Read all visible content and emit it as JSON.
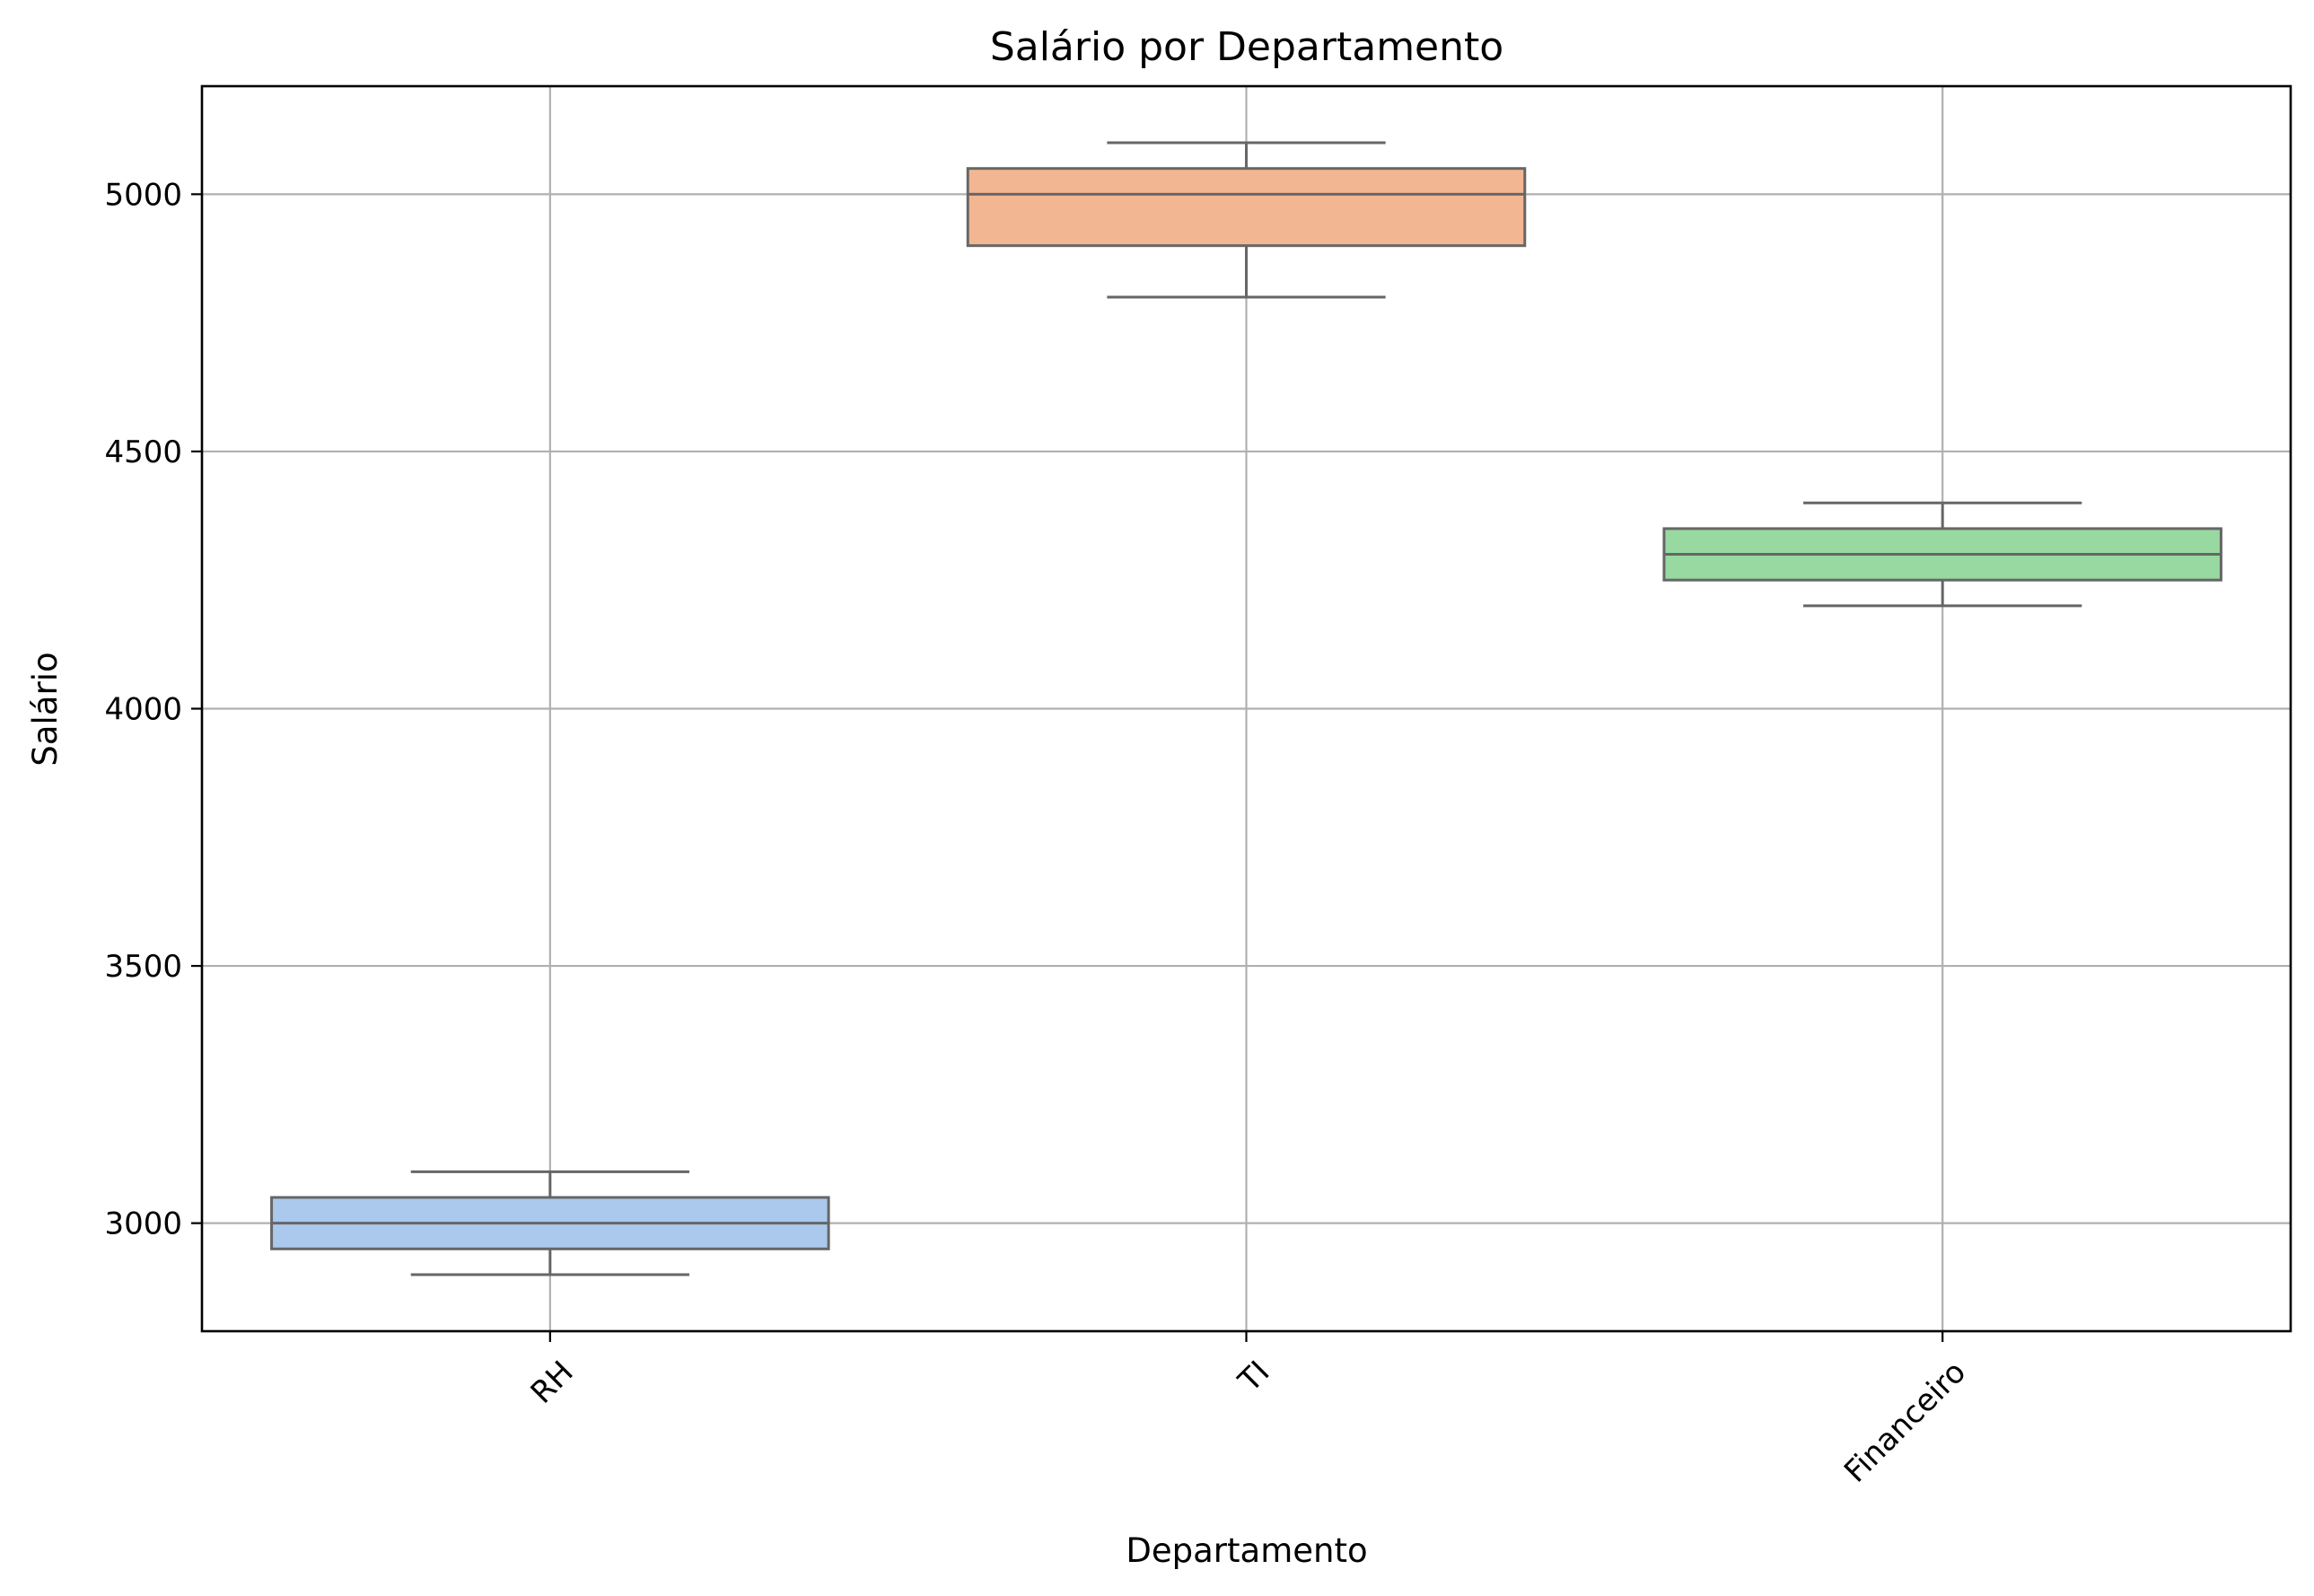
{
  "chart_data": {
    "type": "box",
    "title": "Salário por Departamento",
    "xlabel": "Departamento",
    "ylabel": "Salário",
    "ylim": [
      2790,
      5210
    ],
    "yticks": [
      3000,
      3500,
      4000,
      4500,
      5000
    ],
    "grid": true,
    "categories": [
      "RH",
      "TI",
      "Financeiro"
    ],
    "boxes": [
      {
        "category": "RH",
        "whisker_low": 2900,
        "q1": 2950,
        "median": 3000,
        "q3": 3050,
        "whisker_high": 3100,
        "color": "#abc9ed"
      },
      {
        "category": "TI",
        "whisker_low": 4800,
        "q1": 4900,
        "median": 5000,
        "q3": 5050,
        "whisker_high": 5100,
        "color": "#f2b792"
      },
      {
        "category": "Financeiro",
        "whisker_low": 4200,
        "q1": 4250,
        "median": 4300,
        "q3": 4350,
        "whisker_high": 4400,
        "color": "#97d9a1"
      }
    ]
  }
}
